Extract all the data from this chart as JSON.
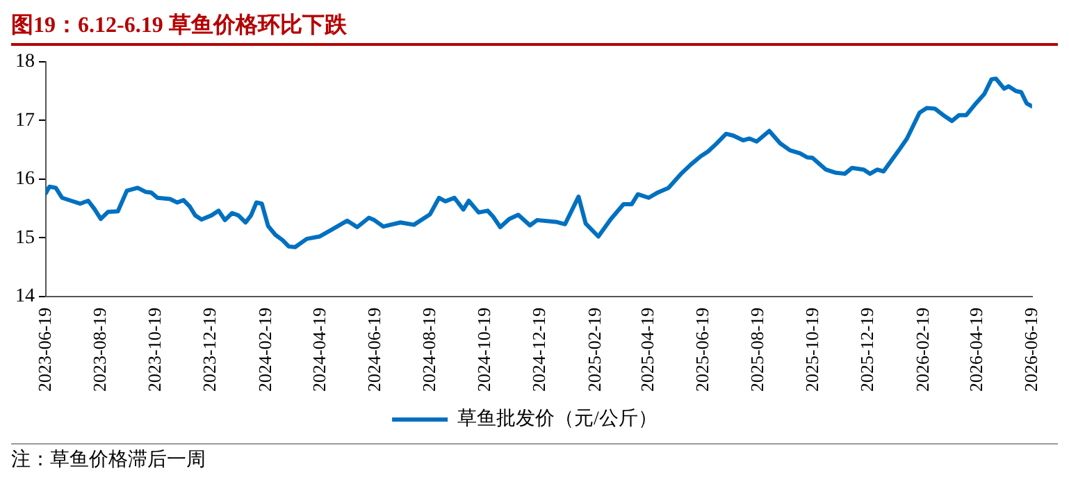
{
  "chart_data": {
    "type": "line",
    "title": "图19：6.12-6.19 草鱼价格环比下跌",
    "annotations": [
      "注：草鱼价格滞后一周"
    ],
    "x": [
      "2023-06-19",
      "2023-06-23",
      "2023-06-30",
      "2023-07-07",
      "2023-07-17",
      "2023-07-27",
      "2023-08-05",
      "2023-08-12",
      "2023-08-19",
      "2023-08-27",
      "2023-09-07",
      "2023-09-17",
      "2023-09-29",
      "2023-10-08",
      "2023-10-14",
      "2023-10-21",
      "2023-11-04",
      "2023-11-12",
      "2023-11-19",
      "2023-11-26",
      "2023-12-02",
      "2023-12-09",
      "2023-12-20",
      "2023-12-28",
      "2024-01-04",
      "2024-01-12",
      "2024-01-19",
      "2024-01-27",
      "2024-02-02",
      "2024-02-08",
      "2024-02-14",
      "2024-02-21",
      "2024-02-29",
      "2024-03-08",
      "2024-03-15",
      "2024-03-22",
      "2024-04-04",
      "2024-04-18",
      "2024-05-01",
      "2024-05-19",
      "2024-05-30",
      "2024-06-12",
      "2024-06-18",
      "2024-06-28",
      "2024-07-17",
      "2024-08-01",
      "2024-08-19",
      "2024-08-29",
      "2024-09-05",
      "2024-09-15",
      "2024-09-25",
      "2024-10-01",
      "2024-10-12",
      "2024-10-22",
      "2024-10-28",
      "2024-11-05",
      "2024-11-15",
      "2024-11-25",
      "2024-12-08",
      "2024-12-16",
      "2025-01-06",
      "2025-01-16",
      "2025-01-31",
      "2025-02-08",
      "2025-02-22",
      "2025-03-08",
      "2025-03-22",
      "2025-03-31",
      "2025-04-07",
      "2025-04-19",
      "2025-04-29",
      "2025-05-11",
      "2025-05-25",
      "2025-06-05",
      "2025-06-16",
      "2025-06-24",
      "2025-07-03",
      "2025-07-14",
      "2025-07-22",
      "2025-08-02",
      "2025-08-09",
      "2025-08-17",
      "2025-08-31",
      "2025-09-12",
      "2025-09-23",
      "2025-10-04",
      "2025-10-12",
      "2025-10-18",
      "2025-11-02",
      "2025-11-12",
      "2025-11-23",
      "2025-12-01",
      "2025-12-14",
      "2025-12-21",
      "2025-12-29",
      "2026-01-05",
      "2026-01-22",
      "2026-01-31",
      "2026-02-14",
      "2026-02-22",
      "2026-03-03",
      "2026-03-14",
      "2026-03-22",
      "2026-03-30",
      "2026-04-07",
      "2026-04-16",
      "2026-04-27",
      "2026-05-05",
      "2026-05-10",
      "2026-05-19",
      "2026-05-24",
      "2026-06-01",
      "2026-06-07",
      "2026-06-13",
      "2026-06-19"
    ],
    "series": [
      {
        "name": "草鱼批发价（元/公斤）",
        "color": "#0070c0",
        "values": [
          15.76,
          15.87,
          15.85,
          15.68,
          15.63,
          15.58,
          15.63,
          15.49,
          15.32,
          15.44,
          15.45,
          15.8,
          15.85,
          15.78,
          15.77,
          15.68,
          15.66,
          15.6,
          15.64,
          15.53,
          15.38,
          15.31,
          15.38,
          15.46,
          15.3,
          15.42,
          15.38,
          15.26,
          15.38,
          15.6,
          15.58,
          15.2,
          15.05,
          14.96,
          14.85,
          14.84,
          14.98,
          15.02,
          15.13,
          15.29,
          15.18,
          15.34,
          15.3,
          15.19,
          15.26,
          15.22,
          15.4,
          15.68,
          15.62,
          15.68,
          15.48,
          15.63,
          15.43,
          15.46,
          15.36,
          15.18,
          15.32,
          15.39,
          15.21,
          15.3,
          15.27,
          15.23,
          15.7,
          15.24,
          15.02,
          15.32,
          15.57,
          15.57,
          15.74,
          15.68,
          15.77,
          15.85,
          16.09,
          16.25,
          16.39,
          16.47,
          16.6,
          16.77,
          16.74,
          16.66,
          16.69,
          16.64,
          16.82,
          16.61,
          16.49,
          16.44,
          16.37,
          16.36,
          16.16,
          16.11,
          16.09,
          16.19,
          16.16,
          16.09,
          16.16,
          16.13,
          16.49,
          16.69,
          17.13,
          17.21,
          17.2,
          17.07,
          16.99,
          17.09,
          17.09,
          17.26,
          17.45,
          17.7,
          17.71,
          17.54,
          17.58,
          17.5,
          17.48,
          17.29,
          17.24
        ]
      }
    ],
    "xlim": [
      "2023-06-19",
      "2026-06-19"
    ],
    "xticks": [
      "2023-06-19",
      "2023-08-19",
      "2023-10-19",
      "2023-12-19",
      "2024-02-19",
      "2024-04-19",
      "2024-06-19",
      "2024-08-19",
      "2024-10-19",
      "2024-12-19",
      "2025-02-19",
      "2025-04-19",
      "2025-06-19",
      "2025-08-19",
      "2025-10-19",
      "2025-12-19",
      "2026-02-19",
      "2026-04-19",
      "2026-06-19"
    ],
    "ylim": [
      14,
      18
    ],
    "yticks": [
      14,
      15,
      16,
      17,
      18
    ],
    "grid": false,
    "legend": "bottom",
    "marker": "none",
    "line_style": "solid"
  }
}
